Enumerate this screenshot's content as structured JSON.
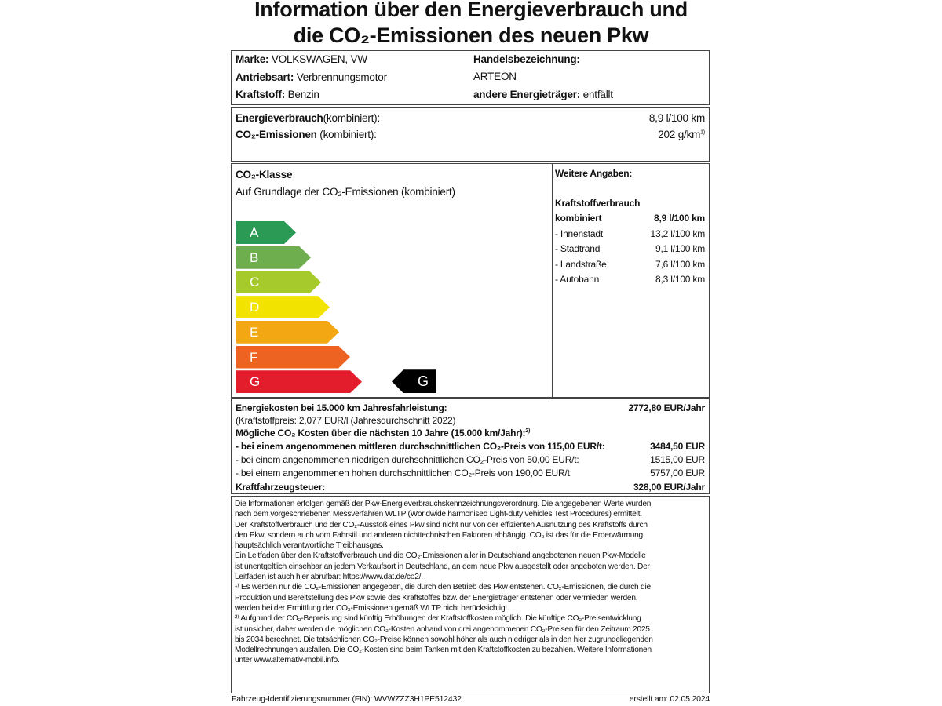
{
  "title": {
    "line1": "Information über den Energieverbrauch und",
    "line2": "die CO₂-Emissionen des neuen Pkw"
  },
  "vehicle": {
    "marke_label": "Marke:",
    "marke": "VOLKSWAGEN, VW",
    "antrieb_label": "Antriebsart:",
    "antrieb": "Verbrennungsmotor",
    "kraftstoff_label": "Kraftstoff:",
    "kraftstoff": "Benzin",
    "handel_label": "Handelsbezeichnung:",
    "handel": "ARTEON",
    "andere_label": "andere Energieträger:",
    "andere": "entfällt"
  },
  "consumption": {
    "energie_label": "Energieverbrauch",
    "energie_suffix": "(kombiniert):",
    "energie": "8,9 l/100 km",
    "co2_label": "CO₂-Emissionen",
    "co2_suffix": "(kombiniert):",
    "co2": "202 g/km",
    "co2_sup": "1)"
  },
  "co2_class": {
    "heading": "CO₂-Klasse",
    "subheading": "Auf Grundlage der CO₂-Emissionen (kombiniert)",
    "classes": [
      {
        "label": "A",
        "color": "#2a9a55"
      },
      {
        "label": "B",
        "color": "#6fae4f"
      },
      {
        "label": "C",
        "color": "#a6c92b"
      },
      {
        "label": "D",
        "color": "#f2e400"
      },
      {
        "label": "E",
        "color": "#f3a712"
      },
      {
        "label": "F",
        "color": "#ec6322"
      },
      {
        "label": "G",
        "color": "#e31d2b"
      }
    ],
    "current": "G"
  },
  "further": {
    "heading": "Weitere Angaben:",
    "sub": "Kraftstoffverbrauch",
    "rows": [
      {
        "label": "kombiniert",
        "value": "8,9 l/100 km"
      },
      {
        "label": "- Innenstadt",
        "value": "13,2 l/100 km"
      },
      {
        "label": "- Stadtrand",
        "value": "9,1 l/100 km"
      },
      {
        "label": "- Landstraße",
        "value": "7,6 l/100 km"
      },
      {
        "label": "- Autobahn",
        "value": "8,3 l/100 km"
      }
    ]
  },
  "costs": {
    "energie_label": "Energiekosten bei 15.000 km Jahresfahrleistung:",
    "energie": "2772,80 EUR/Jahr",
    "preis": "(Kraftstoffpreis: 2,077 EUR/l (Jahresdurchschnitt 2022)",
    "co2_heading": "Mögliche CO₂ Kosten über die nächsten 10 Jahre (15.000 km/Jahr):",
    "co2_sup": "2)",
    "rows": [
      {
        "label": "- bei einem angenommenen mittleren durchschnittlichen CO₂-Preis von 115,00 EUR/t:",
        "value": "3484,50 EUR"
      },
      {
        "label": "- bei einem angenommenen niedrigen durchschnittlichen CO₂-Preis von 50,00 EUR/t:",
        "value": "1515,00 EUR"
      },
      {
        "label": "- bei einem angenommenen hohen durchschnittlichen CO₂-Preis von 190,00 EUR/t:",
        "value": "5757,00 EUR"
      }
    ],
    "steuer_label": "Kraftfahrzeugsteuer:",
    "steuer": "328,00 EUR/Jahr"
  },
  "notes": [
    "Die Informationen erfolgen gemäß der Pkw-Energieverbrauchskennzeichnungsverordnurg. Die angegebenen Werte wurden",
    "nach dem vorgeschriebenen Messverfahren WLTP (Worldwide harmonised Light-duty vehicles Test Procedures) ermittelt.",
    "Der Kraftstoffverbrauch und der CO₂-Ausstoß eines Pkw sind nicht nur von der effizienten Ausnutzung des Kraftstoffs durch",
    "den Pkw, sondern auch vom Fahrstil und anderen nichttechnischen Faktoren abhängig. CO₂ ist das für die Erderwärmung",
    "hauptsächlich verantwortliche Treibhausgas.",
    "Ein Leitfaden über den Kraftstoffverbrauch und die CO₂-Emissionen aller in Deutschland angebotenen neuen Pkw-Modelle",
    "ist unentgeltlich einsehbar an jedem Verkaufsort in Deutschland, an dem neue Pkw ausgestellt oder angeboten werden. Der",
    "Leitfaden ist auch hier abrufbar: https://www.dat.de/co2/.",
    "¹⁾ Es werden nur die CO₂-Emissionen angegeben, die durch den Betrieb des Pkw entstehen. CO₂-Emissionen, die durch die",
    "Produktion und Bereitstellung des Pkw sowie des Kraftstoffes bzw. der Energieträger entstehen oder vermieden werden,",
    "werden bei der Ermittlung der CO₂-Emissionen gemäß WLTP nicht berücksichtigt.",
    "²⁾ Aufgrund der CO₂-Bepreisung sind künftig Erhöhungen der Kraftstoffkosten möglich. Die künftige CO₂-Preisentwicklung",
    "ist unsicher, daher werden die möglichen CO₂-Kosten anhand von drei angenommenen CO₂-Preisen für den Zeitraum 2025",
    "bis 2034 berechnet. Die tatsächlichen CO₂-Preise können sowohl höher als auch niedriger als in den hier zugrundeliegenden",
    "Modellrechnungen ausfallen. Die CO₂-Kosten sind beim Tanken mit den Kraftstoffkosten zu bezahlen. Weitere Informationen",
    "unter www.alternativ-mobil.info."
  ],
  "footer": {
    "fin": "Fahrzeug-Identifizierungsnummer (FIN): WVWZZZ3H1PE512432",
    "date": "erstellt am: 02.05.2024"
  }
}
